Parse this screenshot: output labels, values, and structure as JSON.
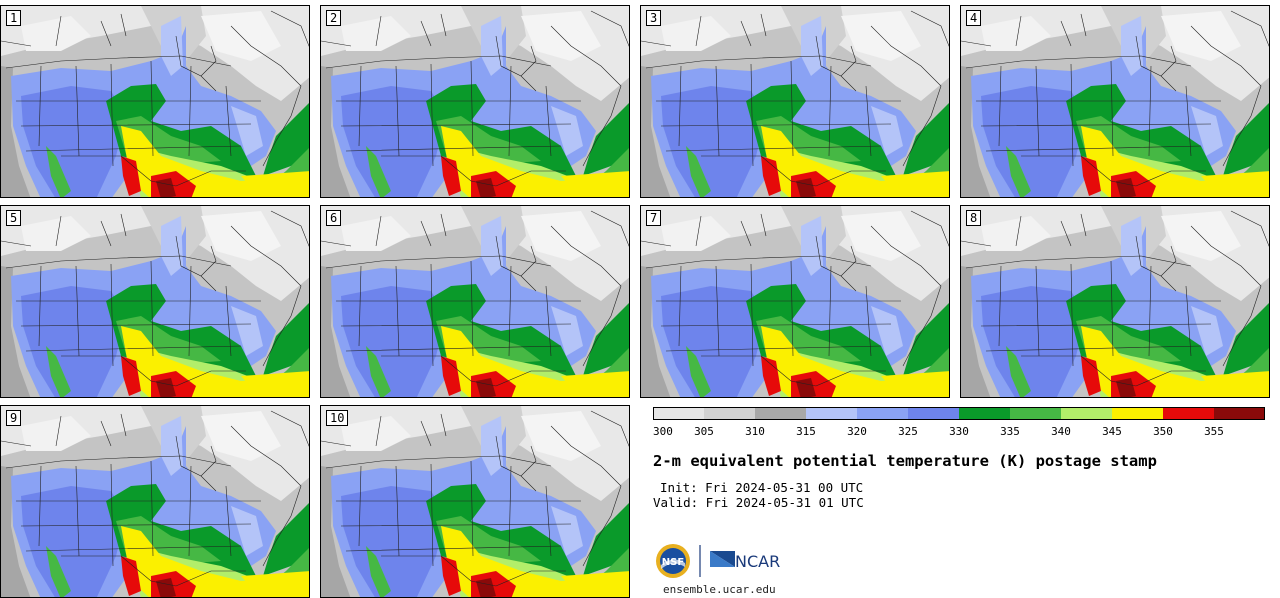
{
  "panels": [
    "1",
    "2",
    "3",
    "4",
    "5",
    "6",
    "7",
    "8",
    "9",
    "10"
  ],
  "colorbar": {
    "ticks": [
      "300",
      "305",
      "310",
      "315",
      "320",
      "325",
      "330",
      "335",
      "340",
      "345",
      "350",
      "355"
    ],
    "colors": [
      "#e6e6e6",
      "#d2d2d2",
      "#a8a8a8",
      "#b4c4f8",
      "#8aa2f4",
      "#6e84ec",
      "#0a9a2a",
      "#46b844",
      "#b2ee6a",
      "#fbf000",
      "#e60a0a",
      "#8a0a0a"
    ]
  },
  "title": "2-m equivalent potential temperature (K) postage stamp",
  "init": "Init: Fri 2024-05-31 00 UTC",
  "valid": "Valid: Fri 2024-05-31 01 UTC",
  "logos": {
    "nsf": "NSF",
    "ncar": "NCAR"
  },
  "url": "ensemble.ucar.edu"
}
